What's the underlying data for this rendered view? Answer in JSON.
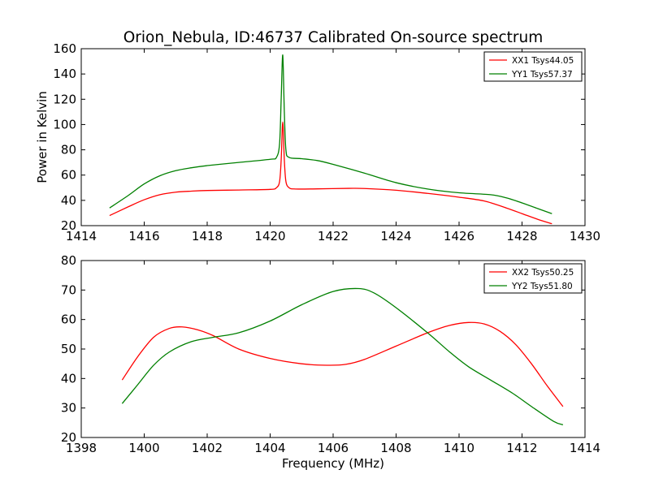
{
  "chart_data": [
    {
      "type": "line",
      "title": "Orion_Nebula, ID:46737 Calibrated On-source spectrum",
      "xlabel": "",
      "ylabel": "Power in Kelvin",
      "xlim": [
        1414,
        1430
      ],
      "ylim": [
        20,
        160
      ],
      "xticks": [
        1414,
        1416,
        1418,
        1420,
        1422,
        1424,
        1426,
        1428,
        1430
      ],
      "yticks": [
        20,
        40,
        60,
        80,
        100,
        120,
        140,
        160
      ],
      "legend": "top-right",
      "series": [
        {
          "name": "XX1 Tsys44.05",
          "color": "#ff0000",
          "x": [
            1414.9,
            1415.5,
            1416.0,
            1416.5,
            1417.0,
            1417.5,
            1418.0,
            1419.0,
            1420.0,
            1420.2,
            1420.3,
            1420.35,
            1420.4,
            1420.45,
            1420.5,
            1420.6,
            1420.8,
            1421.5,
            1422.5,
            1423.0,
            1424.0,
            1425.0,
            1426.0,
            1426.8,
            1427.5,
            1428.0,
            1428.5,
            1428.95
          ],
          "y": [
            28,
            35,
            40.5,
            44.5,
            46.5,
            47.3,
            47.8,
            48.2,
            48.7,
            50,
            55,
            72,
            102,
            72,
            55,
            50,
            49,
            49.1,
            49.5,
            49.4,
            48,
            45.5,
            42.5,
            39.5,
            34,
            29.5,
            25,
            21.5
          ]
        },
        {
          "name": "YY1 Tsys57.37",
          "color": "#008000",
          "x": [
            1414.9,
            1415.5,
            1416.0,
            1416.5,
            1417.0,
            1417.5,
            1418.0,
            1419.0,
            1420.0,
            1420.2,
            1420.3,
            1420.35,
            1420.4,
            1420.45,
            1420.5,
            1420.6,
            1421.0,
            1421.5,
            1422.0,
            1423.0,
            1424.0,
            1425.0,
            1426.0,
            1427.0,
            1427.5,
            1428.0,
            1428.5,
            1428.95
          ],
          "y": [
            34,
            44,
            53,
            59.5,
            63.5,
            65.8,
            67.5,
            70,
            72.5,
            74,
            85,
            120,
            155,
            110,
            80,
            74,
            73,
            71.5,
            68.5,
            61.5,
            54,
            49,
            46,
            44.5,
            42,
            38,
            33.5,
            29.5
          ]
        }
      ]
    },
    {
      "type": "line",
      "title": "",
      "xlabel": "Frequency (MHz)",
      "ylabel": "",
      "xlim": [
        1398,
        1414
      ],
      "ylim": [
        20,
        80
      ],
      "xticks": [
        1398,
        1400,
        1402,
        1404,
        1406,
        1408,
        1410,
        1412,
        1414
      ],
      "yticks": [
        20,
        30,
        40,
        50,
        60,
        70,
        80
      ],
      "legend": "top-right",
      "series": [
        {
          "name": "XX2 Tsys50.25",
          "color": "#ff0000",
          "x": [
            1399.3,
            1399.8,
            1400.3,
            1400.8,
            1401.2,
            1401.7,
            1402.2,
            1403.0,
            1404.0,
            1405.0,
            1405.8,
            1406.4,
            1407.0,
            1408.0,
            1409.0,
            1409.7,
            1410.3,
            1410.8,
            1411.3,
            1411.8,
            1412.3,
            1412.8,
            1413.3
          ],
          "y": [
            39.5,
            47.5,
            54,
            57,
            57.5,
            56.5,
            54.5,
            50,
            46.8,
            45,
            44.5,
            44.8,
            46.5,
            51,
            55.5,
            58,
            59,
            58.5,
            56,
            51.5,
            45,
            37.5,
            30.5
          ]
        },
        {
          "name": "YY2 Tsys51.80",
          "color": "#008000",
          "x": [
            1399.3,
            1399.8,
            1400.3,
            1400.8,
            1401.5,
            1402.2,
            1403.0,
            1404.0,
            1405.0,
            1406.0,
            1406.8,
            1407.3,
            1408.0,
            1409.0,
            1409.7,
            1410.3,
            1411.0,
            1411.7,
            1412.3,
            1413.0,
            1413.3
          ],
          "y": [
            31.5,
            38,
            44.5,
            49,
            52.5,
            54,
            55.5,
            59.5,
            65,
            69.5,
            70.5,
            69,
            64,
            55.5,
            49,
            44,
            39.5,
            35,
            30.5,
            25.5,
            24.3
          ]
        }
      ]
    }
  ]
}
